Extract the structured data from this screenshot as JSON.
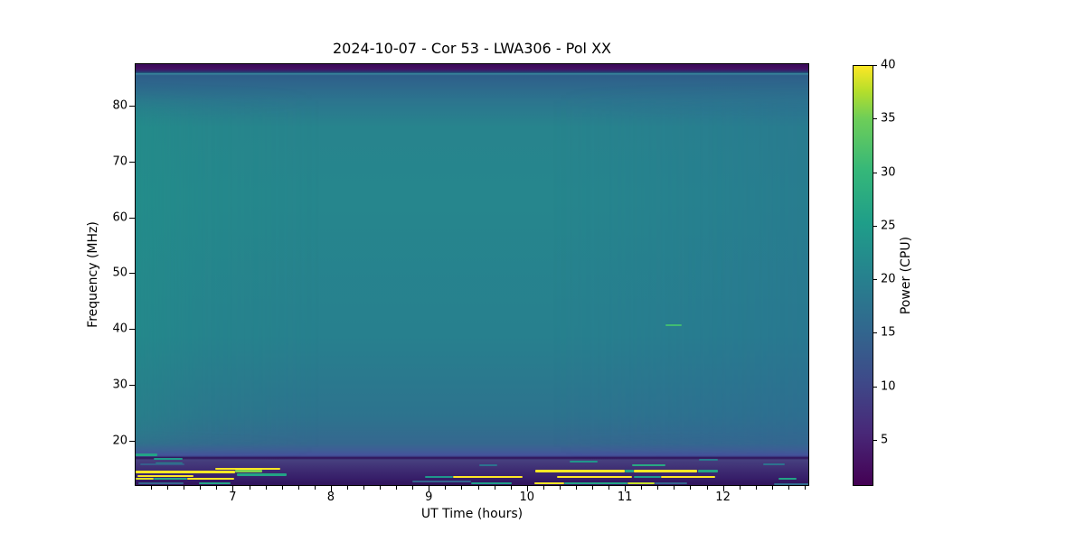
{
  "title": "2024-10-07 - Cor 53 - LWA306 - Pol XX",
  "axes": {
    "x": {
      "label": "UT Time (hours)",
      "ticks": [
        7,
        8,
        9,
        10,
        11,
        12
      ]
    },
    "y": {
      "label": "Frequency (MHz)",
      "ticks": [
        20,
        30,
        40,
        50,
        60,
        70,
        80
      ]
    },
    "colorbar": {
      "label": "Power (CPU)",
      "ticks": [
        5,
        10,
        15,
        20,
        25,
        30,
        35,
        40
      ]
    }
  },
  "colors": {
    "background": "#ffffff",
    "map_body_teal": "#26868d",
    "map_top_band_purple": "#440a5e",
    "map_bottom_band_purple": "#2f1157",
    "streak_yellow": "#f4e62a",
    "colorbar_bottom": "#440154",
    "colorbar_top": "#fde725"
  },
  "chart_data": {
    "type": "heatmap",
    "title": "2024-10-07 - Cor 53 - LWA306 - Pol XX",
    "xlabel": "UT Time (hours)",
    "ylabel": "Frequency (MHz)",
    "colorbar_label": "Power (CPU)",
    "colormap": "viridis",
    "xlim": [
      6.0,
      12.88
    ],
    "ylim": [
      11.9,
      87.6
    ],
    "clim": [
      0.7,
      40
    ],
    "xticks": [
      7,
      8,
      9,
      10,
      11,
      12
    ],
    "x_minor_step_hours": 0.166667,
    "yticks": [
      20,
      30,
      40,
      50,
      60,
      70,
      80
    ],
    "colorbar_ticks": [
      5,
      10,
      15,
      20,
      25,
      30,
      35,
      40
    ],
    "grid": false,
    "background_power": 19,
    "bands": [
      {
        "f_range": [
          85.5,
          87.6
        ],
        "power": 2,
        "desc": "dark purple band at top edge"
      },
      {
        "f_range": [
          80,
          85.5
        ],
        "power": 11,
        "desc": "blue transition band with one thin brighter line near 86 MHz"
      },
      {
        "f_range": [
          22,
          80
        ],
        "power": 19,
        "desc": "uniform teal background; slightly greener before ~7.5 h, slightly bluer after ~12 h"
      },
      {
        "f_range": [
          18,
          22
        ],
        "power": 13,
        "desc": "bluer transition band"
      },
      {
        "f_range": [
          11.9,
          18
        ],
        "power": 4,
        "desc": "dark purple band containing horizontal RFI streaks"
      },
      {
        "f_range": [
          17.9,
          18.1
        ],
        "power": 2,
        "desc": "narrow dark horizontal line across full time range at ~18 MHz"
      }
    ],
    "streaks": [
      {
        "t0": 6.0,
        "t1": 6.22,
        "f": 17.7,
        "df": 0.49,
        "power": 25
      },
      {
        "t0": 6.18,
        "t1": 6.48,
        "f": 16.9,
        "df": 0.4,
        "power": 23
      },
      {
        "t0": 6.2,
        "t1": 6.48,
        "f": 16.1,
        "df": 0.32,
        "power": 18
      },
      {
        "t0": 6.05,
        "t1": 6.5,
        "f": 15.9,
        "df": 0.32,
        "power": 11
      },
      {
        "t0": 6.0,
        "t1": 7.01,
        "f": 14.6,
        "df": 0.4,
        "power": 40
      },
      {
        "t0": 7.01,
        "t1": 7.29,
        "f": 14.7,
        "df": 0.4,
        "power": 33
      },
      {
        "t0": 7.03,
        "t1": 7.54,
        "f": 14.1,
        "df": 0.4,
        "power": 25
      },
      {
        "t0": 6.02,
        "t1": 6.59,
        "f": 13.8,
        "df": 0.32,
        "power": 40
      },
      {
        "t0": 6.0,
        "t1": 6.18,
        "f": 13.3,
        "df": 0.32,
        "power": 38
      },
      {
        "t0": 6.18,
        "t1": 6.53,
        "f": 13.3,
        "df": 0.36,
        "power": 26
      },
      {
        "t0": 6.53,
        "t1": 7.01,
        "f": 13.3,
        "df": 0.36,
        "power": 40
      },
      {
        "t0": 6.03,
        "t1": 6.49,
        "f": 12.6,
        "df": 0.32,
        "power": 12
      },
      {
        "t0": 6.65,
        "t1": 6.97,
        "f": 12.6,
        "df": 0.36,
        "power": 25
      },
      {
        "t0": 6.81,
        "t1": 7.48,
        "f": 15.1,
        "df": 0.36,
        "power": 40
      },
      {
        "t0": 8.82,
        "t1": 9.42,
        "f": 12.9,
        "df": 0.36,
        "power": 12
      },
      {
        "t0": 9.24,
        "t1": 9.95,
        "f": 13.7,
        "df": 0.32,
        "power": 40
      },
      {
        "t0": 8.95,
        "t1": 9.24,
        "f": 13.7,
        "df": 0.32,
        "power": 22
      },
      {
        "t0": 9.42,
        "t1": 9.84,
        "f": 12.6,
        "df": 0.36,
        "power": 24
      },
      {
        "t0": 9.5,
        "t1": 9.69,
        "f": 15.8,
        "df": 0.3,
        "power": 14
      },
      {
        "t0": 11.06,
        "t1": 11.4,
        "f": 15.8,
        "df": 0.4,
        "power": 26
      },
      {
        "t0": 10.43,
        "t1": 10.71,
        "f": 16.4,
        "df": 0.32,
        "power": 22
      },
      {
        "t0": 11.75,
        "t1": 11.94,
        "f": 16.7,
        "df": 0.32,
        "power": 15
      },
      {
        "t0": 10.08,
        "t1": 10.99,
        "f": 14.7,
        "df": 0.57,
        "power": 40
      },
      {
        "t0": 11.08,
        "t1": 11.73,
        "f": 14.7,
        "df": 0.49,
        "power": 40
      },
      {
        "t0": 10.99,
        "t1": 11.08,
        "f": 14.7,
        "df": 0.49,
        "power": 25
      },
      {
        "t0": 11.74,
        "t1": 11.94,
        "f": 14.7,
        "df": 0.4,
        "power": 25
      },
      {
        "t0": 10.3,
        "t1": 11.06,
        "f": 13.7,
        "df": 0.39,
        "power": 40
      },
      {
        "t0": 11.36,
        "t1": 11.91,
        "f": 13.7,
        "df": 0.39,
        "power": 40
      },
      {
        "t0": 11.08,
        "t1": 11.36,
        "f": 13.7,
        "df": 0.39,
        "power": 24
      },
      {
        "t0": 12.56,
        "t1": 12.74,
        "f": 13.4,
        "df": 0.32,
        "power": 25
      },
      {
        "t0": 10.07,
        "t1": 10.37,
        "f": 12.6,
        "df": 0.37,
        "power": 40
      },
      {
        "t0": 10.37,
        "t1": 11.02,
        "f": 12.6,
        "df": 0.37,
        "power": 25
      },
      {
        "t0": 11.02,
        "t1": 11.29,
        "f": 12.6,
        "df": 0.37,
        "power": 37
      },
      {
        "t0": 11.29,
        "t1": 11.63,
        "f": 12.6,
        "df": 0.36,
        "power": 12
      },
      {
        "t0": 12.4,
        "t1": 12.62,
        "f": 15.9,
        "df": 0.3,
        "power": 14
      },
      {
        "t0": 12.51,
        "t1": 12.87,
        "f": 12.4,
        "df": 0.34,
        "power": 13
      },
      {
        "t0": 11.4,
        "t1": 11.57,
        "f": 40.8,
        "df": 0.32,
        "power": 29
      }
    ]
  }
}
